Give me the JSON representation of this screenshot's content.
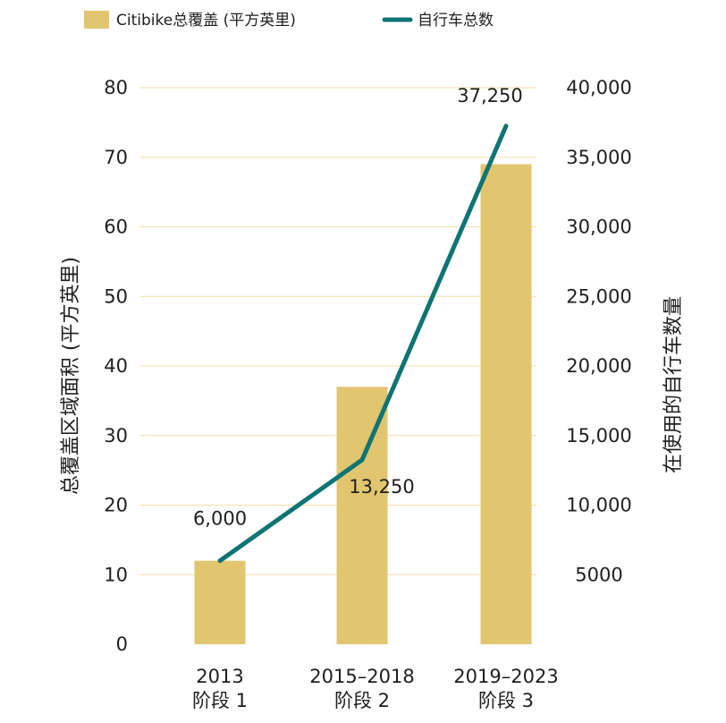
{
  "legend": {
    "bar_label": "Citibike总覆盖 (平方英里)",
    "line_label": "自行车总数"
  },
  "colors": {
    "bar": "#e2c56f",
    "line": "#0f7474",
    "grid": "#f0dfaa",
    "text": "#1f1f1f"
  },
  "chart_data": {
    "type": "bar",
    "title": "",
    "categories": [
      {
        "line1": "2013",
        "line2": "阶段 1"
      },
      {
        "line1": "2015–2018",
        "line2": "阶段 2"
      },
      {
        "line1": "2019–2023",
        "line2": "阶段 3"
      }
    ],
    "series": [
      {
        "name": "Citibike总覆盖 (平方英里)",
        "type": "bar",
        "axis": "left",
        "values": [
          12,
          37,
          69
        ]
      },
      {
        "name": "自行车总数",
        "type": "line",
        "axis": "right",
        "values": [
          6000,
          13250,
          37250
        ],
        "data_labels": [
          "6,000",
          "13,250",
          "37,250"
        ]
      }
    ],
    "left_axis": {
      "label": "总覆盖区域面积 (平方英里)",
      "range": [
        0,
        80
      ],
      "ticks": [
        0,
        10,
        20,
        30,
        40,
        50,
        60,
        70,
        80
      ],
      "tick_labels": [
        "0",
        "10",
        "20",
        "30",
        "40",
        "50",
        "60",
        "70",
        "80"
      ]
    },
    "right_axis": {
      "label": "在使用的自行车数量",
      "range": [
        0,
        40000
      ],
      "ticks": [
        5000,
        10000,
        15000,
        20000,
        25000,
        30000,
        35000,
        40000
      ],
      "tick_labels": [
        "5000",
        "10,000",
        "15,000",
        "20,000",
        "25,000",
        "30,000",
        "35,000",
        "40,000"
      ]
    },
    "gridlines": true,
    "legend_position": "top-left"
  }
}
